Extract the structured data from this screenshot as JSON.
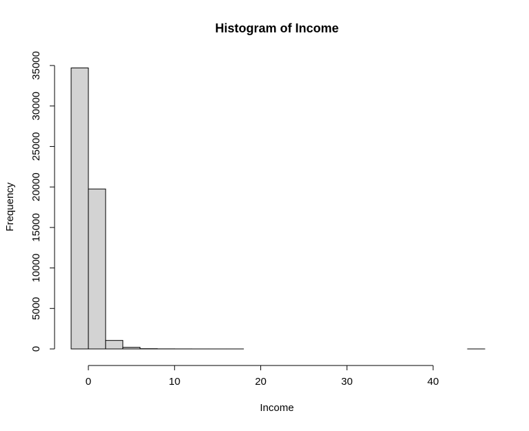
{
  "chart_data": {
    "type": "bar",
    "title": "Histogram of Income",
    "xlabel": "Income",
    "ylabel": "Frequency",
    "bins": [
      {
        "x0": -2,
        "x1": 0,
        "count": 34700
      },
      {
        "x0": 0,
        "x1": 2,
        "count": 19750
      },
      {
        "x0": 2,
        "x1": 4,
        "count": 1050
      },
      {
        "x0": 4,
        "x1": 6,
        "count": 200
      },
      {
        "x0": 6,
        "x1": 8,
        "count": 30
      },
      {
        "x0": 8,
        "x1": 10,
        "count": 10
      },
      {
        "x0": 10,
        "x1": 12,
        "count": 5
      },
      {
        "x0": 12,
        "x1": 14,
        "count": 2
      },
      {
        "x0": 14,
        "x1": 16,
        "count": 1
      },
      {
        "x0": 16,
        "x1": 18,
        "count": 1
      },
      {
        "x0": 18,
        "x1": 20,
        "count": 0
      },
      {
        "x0": 20,
        "x1": 22,
        "count": 0
      },
      {
        "x0": 22,
        "x1": 24,
        "count": 0
      },
      {
        "x0": 24,
        "x1": 26,
        "count": 0
      },
      {
        "x0": 26,
        "x1": 28,
        "count": 0
      },
      {
        "x0": 28,
        "x1": 30,
        "count": 0
      },
      {
        "x0": 30,
        "x1": 32,
        "count": 0
      },
      {
        "x0": 32,
        "x1": 34,
        "count": 0
      },
      {
        "x0": 34,
        "x1": 36,
        "count": 0
      },
      {
        "x0": 36,
        "x1": 38,
        "count": 0
      },
      {
        "x0": 38,
        "x1": 40,
        "count": 0
      },
      {
        "x0": 40,
        "x1": 42,
        "count": 0
      },
      {
        "x0": 42,
        "x1": 44,
        "count": 0
      },
      {
        "x0": 44,
        "x1": 46,
        "count": 1
      }
    ],
    "xticks": [
      0,
      10,
      20,
      30,
      40
    ],
    "yticks": [
      0,
      5000,
      10000,
      15000,
      20000,
      25000,
      30000,
      35000
    ],
    "xlim": [
      -2,
      46
    ],
    "ylim": [
      0,
      35000
    ],
    "bar_fill": "#d3d3d3",
    "bar_stroke": "#000000",
    "grid": false,
    "legend": "none"
  }
}
